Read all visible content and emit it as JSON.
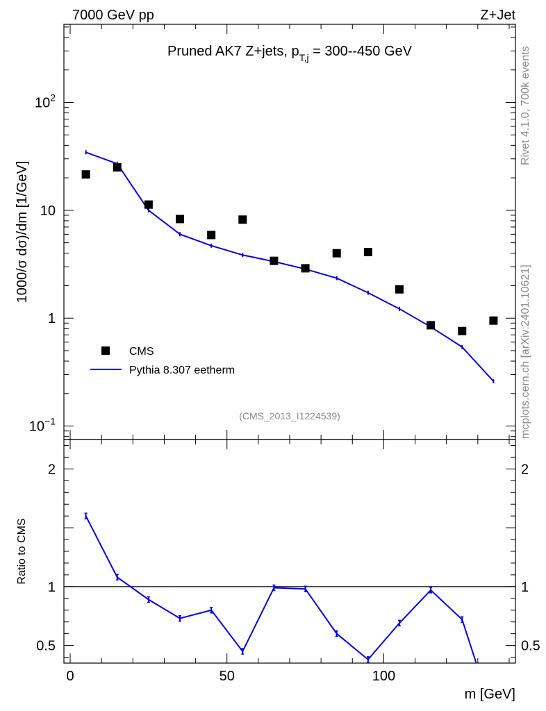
{
  "header": {
    "left": "7000 GeV pp",
    "right": "Z+Jet"
  },
  "side_labels": {
    "rivet": "Rivet 4.1.0,  700k events",
    "mcplots": "mcplots.cern.ch [arXiv:2401.10621]"
  },
  "colors": {
    "mc": "#0000ee",
    "data": "#000000",
    "watermark": "#8a8a8a"
  },
  "chart_data": [
    {
      "type": "scatter+line",
      "title": "Pruned AK7 Z+jets, p_{T,j} = 300--450 GeV",
      "title_parts": {
        "pre": "Pruned AK7 Z+jets, p",
        "sub": "T,j",
        "post": " = 300--450 GeV"
      },
      "ylabel": "1000/σ  dσ)/dm [1/GeV]",
      "yscale": "log",
      "ylim": [
        0.075,
        530
      ],
      "xlim": [
        -2,
        142
      ],
      "watermark": "(CMS_2013_I1224539)",
      "yticks": [
        {
          "value": 0.1,
          "base": "10",
          "exp": "−1"
        },
        {
          "value": 1,
          "label": "1"
        },
        {
          "value": 10,
          "label": "10"
        },
        {
          "value": 100,
          "base": "10",
          "exp": "2"
        }
      ],
      "legend": {
        "position": "bottom-left",
        "entries": [
          "CMS",
          "Pythia 8.307 eetherm"
        ]
      },
      "series": [
        {
          "name": "CMS",
          "style": "markers",
          "x": [
            5,
            15,
            25,
            35,
            45,
            55,
            65,
            75,
            85,
            95,
            105,
            115,
            125,
            135
          ],
          "y": [
            21.5,
            25.0,
            11.3,
            8.3,
            5.9,
            8.2,
            3.4,
            2.9,
            4.0,
            4.1,
            1.85,
            0.86,
            0.76,
            0.95
          ]
        },
        {
          "name": "Pythia 8.307 eetherm",
          "style": "line",
          "x": [
            5,
            15,
            25,
            35,
            45,
            55,
            65,
            75,
            85,
            95,
            105,
            115,
            125,
            135
          ],
          "y": [
            34.5,
            27.0,
            10.0,
            6.0,
            4.7,
            3.85,
            3.35,
            2.85,
            2.35,
            1.72,
            1.22,
            0.83,
            0.54,
            0.26
          ]
        }
      ]
    },
    {
      "type": "line",
      "ylabel": "Ratio to CMS",
      "xlabel": "m [GeV]",
      "ylim": [
        0.35,
        2.25
      ],
      "xlim": [
        -2,
        142
      ],
      "reference_line": 1,
      "yticks": [
        0.5,
        1,
        2
      ],
      "xticks": [
        0,
        50,
        100
      ],
      "series": [
        {
          "name": "Pythia 8.307 eetherm / CMS",
          "x": [
            5,
            15,
            25,
            35,
            45,
            55,
            65,
            75,
            85,
            95,
            105,
            115,
            125,
            129.5
          ],
          "y": [
            1.6,
            1.08,
            0.89,
            0.73,
            0.8,
            0.45,
            0.99,
            0.98,
            0.6,
            0.38,
            0.69,
            0.97,
            0.72,
            0.35
          ]
        }
      ]
    }
  ]
}
